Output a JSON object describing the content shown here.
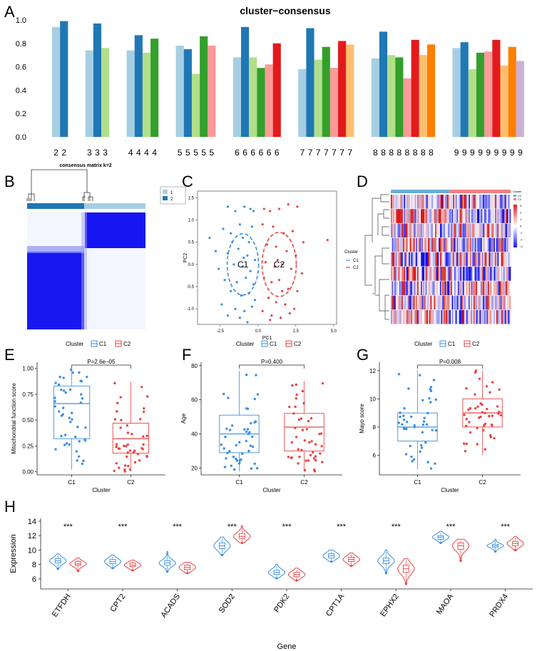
{
  "colors": {
    "c1": "#3b8fe0",
    "c2": "#e84545",
    "heat_blue": "#1a1aff",
    "heat_red": "#e02020",
    "cons_blue": "#1818f0",
    "bar_palette": [
      "#a6cee3",
      "#1f78b4",
      "#b2df8a",
      "#33a02c",
      "#fb9a99",
      "#e31a1c",
      "#fdbf6f",
      "#ff7f00",
      "#cab2d6",
      "#6a3d9a"
    ]
  },
  "panels": {
    "A": "A",
    "B": "B",
    "C": "C",
    "D": "D",
    "E": "E",
    "F": "F",
    "G": "G",
    "H": "H"
  },
  "chart_data": [
    {
      "id": "A",
      "type": "bar",
      "title": "cluster−consensus",
      "ylim": [
        0,
        1.0
      ],
      "yticks": [
        "0.0",
        "0.2",
        "0.4",
        "0.6",
        "0.8",
        "1.0"
      ],
      "groups": [
        {
          "k": 2,
          "labels": [
            "2",
            "2"
          ],
          "values": [
            0.94,
            0.99
          ]
        },
        {
          "k": 3,
          "labels": [
            "3",
            "3",
            "3"
          ],
          "values": [
            0.74,
            0.97,
            0.76
          ]
        },
        {
          "k": 4,
          "labels": [
            "4",
            "4",
            "4",
            "4"
          ],
          "values": [
            0.74,
            0.87,
            0.72,
            0.84
          ]
        },
        {
          "k": 5,
          "labels": [
            "5",
            "5",
            "5",
            "5",
            "5"
          ],
          "values": [
            0.78,
            0.75,
            0.54,
            0.86,
            0.78
          ]
        },
        {
          "k": 6,
          "labels": [
            "6",
            "6",
            "6",
            "6",
            "6",
            "6"
          ],
          "values": [
            0.68,
            0.94,
            0.68,
            0.59,
            0.62,
            0.8
          ]
        },
        {
          "k": 7,
          "labels": [
            "7",
            "7",
            "7",
            "7",
            "7",
            "7",
            "7"
          ],
          "values": [
            0.58,
            0.93,
            0.66,
            0.77,
            0.59,
            0.82,
            0.79
          ]
        },
        {
          "k": 8,
          "labels": [
            "8",
            "8",
            "8",
            "8",
            "8",
            "8",
            "8",
            "8"
          ],
          "values": [
            0.67,
            0.9,
            0.7,
            0.68,
            0.5,
            0.83,
            0.7,
            0.79
          ]
        },
        {
          "k": 9,
          "labels": [
            "9",
            "9",
            "9",
            "9",
            "9",
            "9",
            "9",
            "9",
            "9"
          ],
          "values": [
            0.76,
            0.81,
            0.58,
            0.72,
            0.73,
            0.83,
            0.61,
            0.77,
            0.65
          ]
        }
      ]
    },
    {
      "id": "B",
      "type": "heatmap",
      "title": "consensus matrix k=2",
      "legend": [
        "1",
        "2"
      ]
    },
    {
      "id": "C",
      "type": "scatter",
      "xlabel": "PC1",
      "ylabel": "PC2",
      "xticks": [
        "-2.5",
        "0.0",
        "2.5",
        "5.0"
      ],
      "xtick_vals": [
        -2.5,
        0,
        2.5,
        5
      ],
      "yticks": [
        "1.5",
        "1.0",
        "0.5",
        "0.0",
        "-0.5",
        "-1.0"
      ],
      "ytick_vals": [
        1.5,
        1.0,
        0.5,
        0.0,
        -0.5,
        -1.0
      ],
      "xlim": [
        -4,
        5.2
      ],
      "ylim": [
        -1.35,
        1.65
      ],
      "legend_title": "Cluster",
      "legend": [
        "C1",
        "C2"
      ],
      "ellipse_labels": [
        "C1",
        "C2"
      ],
      "series": [
        {
          "name": "C1",
          "points": [
            [
              -2.0,
              1.3
            ],
            [
              -1.5,
              1.2
            ],
            [
              -0.9,
              1.3
            ],
            [
              -0.5,
              1.25
            ],
            [
              -0.3,
              1.2
            ],
            [
              -3.2,
              0.6
            ],
            [
              -2.3,
              0.8
            ],
            [
              -1.8,
              0.7
            ],
            [
              -1.2,
              0.9
            ],
            [
              -0.4,
              0.85
            ],
            [
              -1.0,
              0.6
            ],
            [
              -0.6,
              0.5
            ],
            [
              -2.8,
              0.3
            ],
            [
              -2.0,
              0.25
            ],
            [
              -1.3,
              0.35
            ],
            [
              -0.7,
              0.2
            ],
            [
              -0.2,
              0.1
            ],
            [
              -1.6,
              0.0
            ],
            [
              -2.6,
              -0.1
            ],
            [
              -1.0,
              -0.05
            ],
            [
              -0.5,
              -0.15
            ],
            [
              -2.2,
              -0.35
            ],
            [
              -1.4,
              -0.4
            ],
            [
              -0.8,
              -0.3
            ],
            [
              -0.3,
              -0.45
            ],
            [
              -1.8,
              -0.6
            ],
            [
              -1.1,
              -0.7
            ],
            [
              -0.6,
              -0.65
            ],
            [
              -2.4,
              -0.9
            ],
            [
              -1.5,
              -1.0
            ],
            [
              -0.9,
              -1.05
            ],
            [
              -0.4,
              -0.95
            ],
            [
              -1.2,
              -1.2
            ],
            [
              -0.7,
              -1.3
            ],
            [
              -2.0,
              -1.15
            ],
            [
              -0.2,
              -0.8
            ],
            [
              -1.7,
              0.5
            ],
            [
              -0.95,
              0.15
            ]
          ]
        },
        {
          "name": "C2",
          "points": [
            [
              0.4,
              1.25
            ],
            [
              0.8,
              1.2
            ],
            [
              1.4,
              1.25
            ],
            [
              2.0,
              1.35
            ],
            [
              2.6,
              1.3
            ],
            [
              0.3,
              0.9
            ],
            [
              1.0,
              0.85
            ],
            [
              1.7,
              0.7
            ],
            [
              2.3,
              0.75
            ],
            [
              3.0,
              0.5
            ],
            [
              0.6,
              0.45
            ],
            [
              1.2,
              0.4
            ],
            [
              1.9,
              0.3
            ],
            [
              2.5,
              0.2
            ],
            [
              0.5,
              0.05
            ],
            [
              1.1,
              -0.05
            ],
            [
              1.6,
              0.0
            ],
            [
              2.2,
              -0.1
            ],
            [
              2.9,
              -0.2
            ],
            [
              4.6,
              0.55
            ],
            [
              0.4,
              -0.3
            ],
            [
              0.9,
              -0.4
            ],
            [
              1.4,
              -0.35
            ],
            [
              2.0,
              -0.55
            ],
            [
              2.6,
              -0.6
            ],
            [
              0.7,
              -0.75
            ],
            [
              1.2,
              -0.85
            ],
            [
              1.8,
              -0.9
            ],
            [
              2.4,
              -1.0
            ],
            [
              0.3,
              -1.05
            ],
            [
              0.9,
              -1.15
            ],
            [
              1.5,
              -1.2
            ],
            [
              2.1,
              -1.1
            ],
            [
              1.3,
              0.1
            ],
            [
              0.8,
              -1.25
            ],
            [
              1.6,
              -0.6
            ]
          ]
        }
      ]
    },
    {
      "id": "D",
      "type": "heatmap",
      "legend_title": "Cluster",
      "legend": [
        "C1",
        "C2"
      ],
      "scale_ticks": [
        "3",
        "2",
        "1",
        "0",
        "-1",
        "-2",
        "-3"
      ],
      "n_rows": 9,
      "n_cols": 100
    },
    {
      "id": "E",
      "type": "boxplot",
      "legend_title": "Cluster",
      "legend": [
        "C1",
        "C2"
      ],
      "pvalue": "P=2.6e−05",
      "xlabel": "Cluster",
      "ylabel": "Mitochondrial function score",
      "categories": [
        "C1",
        "C2"
      ],
      "ylim": [
        -0.03,
        1.06
      ],
      "yticks": [
        "0.00",
        "0.25",
        "0.50",
        "0.75",
        "1.00"
      ],
      "ytick_vals": [
        0,
        0.25,
        0.5,
        0.75,
        1.0
      ],
      "boxes": [
        {
          "min": 0.02,
          "q1": 0.32,
          "median": 0.66,
          "q3": 0.83,
          "max": 1.0
        },
        {
          "min": 0.0,
          "q1": 0.18,
          "median": 0.32,
          "q3": 0.47,
          "max": 0.87
        }
      ]
    },
    {
      "id": "F",
      "type": "boxplot",
      "legend_title": "Cluster",
      "legend": [
        "C1",
        "C2"
      ],
      "pvalue": "P=0.400",
      "xlabel": "Cluster",
      "ylabel": "Age",
      "categories": [
        "C1",
        "C2"
      ],
      "ylim": [
        16,
        82
      ],
      "yticks": [
        "20",
        "40",
        "60",
        "80"
      ],
      "ytick_vals": [
        20,
        40,
        60,
        80
      ],
      "boxes": [
        {
          "min": 18,
          "q1": 29,
          "median": 40,
          "q3": 51,
          "max": 77
        },
        {
          "min": 18,
          "q1": 30,
          "median": 44,
          "q3": 52,
          "max": 71
        }
      ]
    },
    {
      "id": "G",
      "type": "boxplot",
      "legend_title": "Cluster",
      "legend": [
        "C1",
        "C2"
      ],
      "pvalue": "P=0.008",
      "xlabel": "Cluster",
      "ylabel": "Mayo score",
      "categories": [
        "C1",
        "C2"
      ],
      "ylim": [
        4.6,
        12.6
      ],
      "yticks": [
        "6",
        "8",
        "10",
        "12"
      ],
      "ytick_vals": [
        6,
        8,
        10,
        12
      ],
      "boxes": [
        {
          "min": 5,
          "q1": 7,
          "median": 8,
          "q3": 9,
          "max": 12
        },
        {
          "min": 6,
          "q1": 8,
          "median": 9,
          "q3": 10,
          "max": 12
        }
      ]
    },
    {
      "id": "H",
      "type": "violin",
      "xlabel": "Gene",
      "ylabel": "Expression",
      "ylim": [
        4.6,
        14.4
      ],
      "yticks": [
        "6",
        "8",
        "10",
        "12",
        "14"
      ],
      "ytick_vals": [
        6,
        8,
        10,
        12,
        14
      ],
      "genes": [
        "ETFDH",
        "CPT2",
        "ACADS",
        "SOD2",
        "PDK2",
        "CPT1A",
        "EPHX2",
        "MAOA",
        "PRDX4"
      ],
      "significance": [
        "***",
        "***",
        "***",
        "***",
        "***",
        "***",
        "***",
        "***",
        "***"
      ],
      "series": [
        {
          "name": "C1",
          "median": [
            8.5,
            8.4,
            8.2,
            10.6,
            6.9,
            9.2,
            8.5,
            11.8,
            10.6
          ],
          "q1": [
            8.2,
            8.1,
            7.9,
            10.2,
            6.6,
            8.9,
            8.1,
            11.5,
            10.4
          ],
          "q3": [
            8.8,
            8.7,
            8.5,
            11.0,
            7.2,
            9.5,
            8.9,
            12.0,
            10.8
          ],
          "min": [
            7.4,
            7.5,
            7.0,
            9.3,
            6.1,
            8.4,
            6.8,
            11.0,
            9.8
          ],
          "max": [
            9.5,
            9.3,
            9.8,
            11.8,
            8.0,
            10.0,
            10.0,
            12.6,
            11.5
          ]
        },
        {
          "name": "C2",
          "median": [
            8.1,
            7.9,
            7.6,
            11.9,
            6.6,
            8.7,
            7.4,
            10.6,
            10.9
          ],
          "q1": [
            7.9,
            7.7,
            7.3,
            11.6,
            6.3,
            8.4,
            6.9,
            10.1,
            10.6
          ],
          "q3": [
            8.4,
            8.2,
            7.9,
            12.3,
            6.9,
            9.0,
            7.9,
            11.0,
            11.2
          ],
          "min": [
            7.1,
            7.2,
            6.8,
            11.0,
            5.8,
            7.8,
            5.3,
            8.5,
            10.0
          ],
          "max": [
            8.9,
            8.6,
            8.3,
            13.4,
            7.5,
            9.6,
            8.8,
            11.5,
            11.9
          ]
        }
      ]
    }
  ]
}
